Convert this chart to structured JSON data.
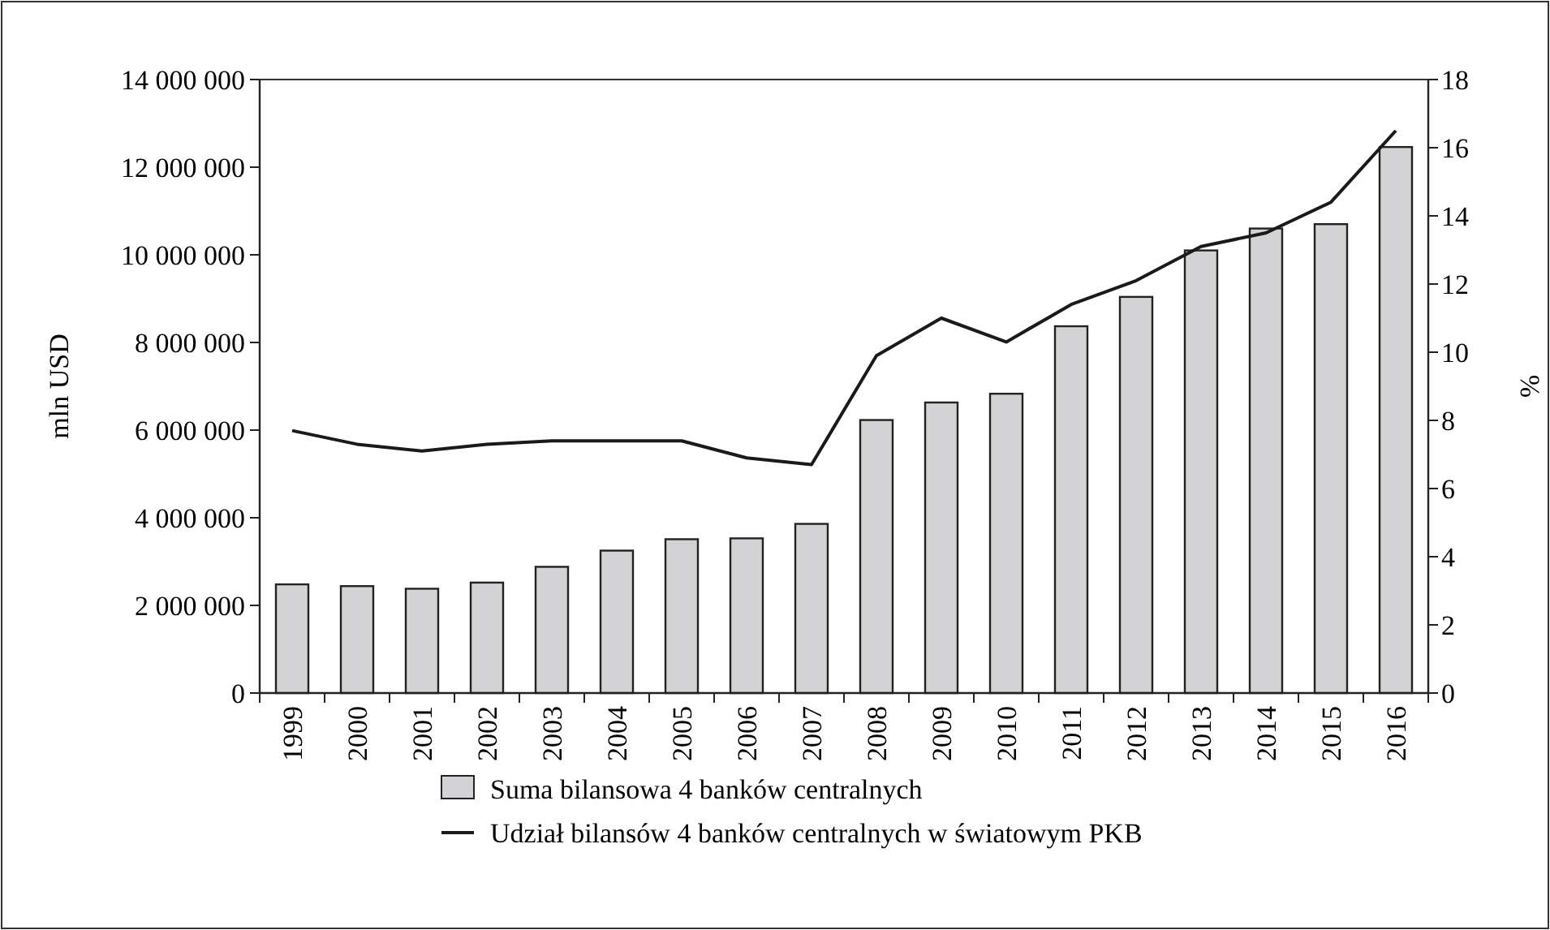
{
  "chart_data": {
    "type": "bar",
    "ylabel": "mln USD",
    "y2label": "%",
    "categories": [
      "1999",
      "2000",
      "2001",
      "2002",
      "2003",
      "2004",
      "2005",
      "2006",
      "2007",
      "2008",
      "2009",
      "2010",
      "2011",
      "2012",
      "2013",
      "2014",
      "2015",
      "2016"
    ],
    "series": [
      {
        "name": "Suma bilansowa 4 banków centralnych",
        "color": "#d3d3d5",
        "values": [
          2480000,
          2440000,
          2380000,
          2520000,
          2880000,
          3250000,
          3510000,
          3530000,
          3860000,
          6230000,
          6630000,
          6830000,
          8370000,
          9040000,
          10100000,
          10600000,
          10700000,
          12460000
        ]
      },
      {
        "name": "Udział bilansów 4 banków centralnych w światowym PKB",
        "type": "line",
        "axis": "y2",
        "color": "#1a1a1a",
        "values": [
          7.7,
          7.3,
          7.1,
          7.3,
          7.4,
          7.4,
          7.4,
          6.9,
          6.7,
          9.9,
          11.0,
          10.3,
          11.4,
          12.1,
          13.1,
          13.5,
          14.4,
          16.5
        ]
      }
    ],
    "ylim": [
      0,
      14000000
    ],
    "yticks": [
      {
        "value": 0,
        "label": "0"
      },
      {
        "value": 2000000,
        "label": "2 000 000"
      },
      {
        "value": 4000000,
        "label": "4 000 000"
      },
      {
        "value": 6000000,
        "label": "6 000 000"
      },
      {
        "value": 8000000,
        "label": "8 000 000"
      },
      {
        "value": 10000000,
        "label": "10 000 000"
      },
      {
        "value": 12000000,
        "label": "12 000 000"
      },
      {
        "value": 14000000,
        "label": "14 000 000"
      }
    ],
    "y2lim": [
      0,
      18
    ],
    "y2ticks": [
      0,
      2,
      4,
      6,
      8,
      10,
      12,
      14,
      16,
      18
    ],
    "legend": "bottom",
    "grid": false,
    "marker": "none",
    "line_style": "solid"
  }
}
